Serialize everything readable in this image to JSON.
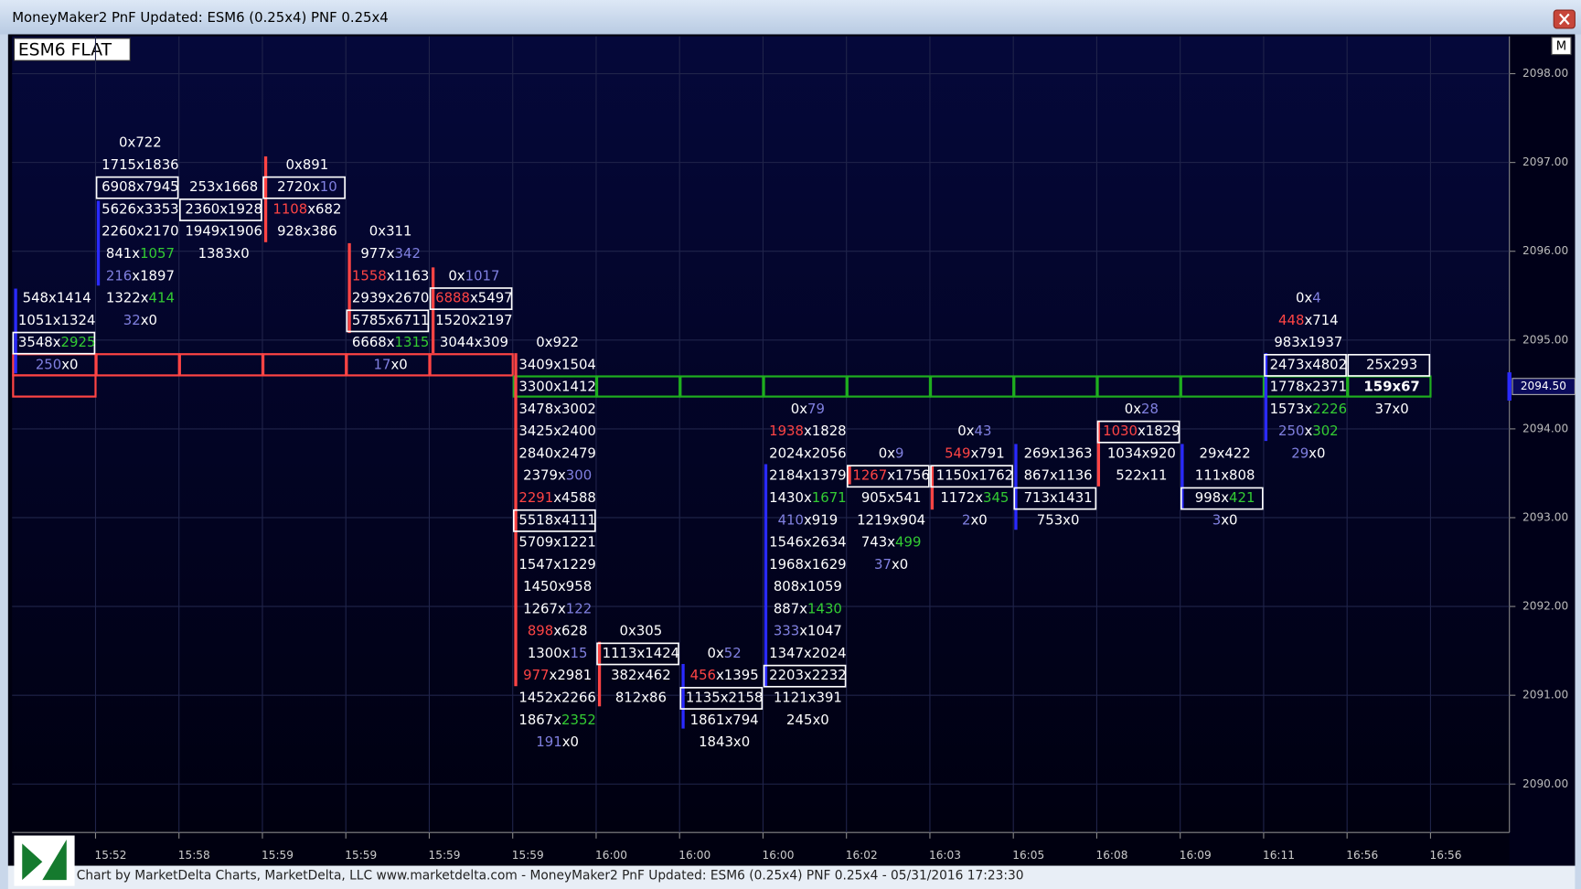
{
  "window": {
    "title": "MoneyMaker2 PnF Updated: ESM6 (0.25x4) PNF 0.25x4",
    "button": "M"
  },
  "symbol": "ESM6 FLAT",
  "footer": "Chart by MarketDelta Charts, MarketDelta, LLC www.marketdelta.com - MoneyMaker2 PnF Updated: ESM6 (0.25x4) PNF 0.25x4 - 05/31/2016 17:23:30",
  "price_axis": {
    "labels": [
      "2098.00",
      "2097.00",
      "2096.00",
      "2095.00",
      "2094.00",
      "2093.00",
      "2092.00",
      "2091.00",
      "2090.00"
    ],
    "current": "2094.50"
  },
  "time_axis": [
    "15:52",
    "15:58",
    "15:59",
    "15:59",
    "15:59",
    "15:59",
    "16:00",
    "16:00",
    "16:00",
    "16:02",
    "16:03",
    "16:05",
    "16:08",
    "16:09",
    "16:11",
    "16:56",
    "16:56"
  ],
  "colors": {
    "plain": "#ffffff",
    "green": "#33cc33",
    "blue": "#8080e0",
    "red": "#ff4444"
  },
  "columns": [
    {
      "top": 2095.5,
      "cells": [
        "548x1414",
        "1051x1324",
        {
          "text": "3548x2925",
          "ask": "green",
          "box": "plain"
        },
        {
          "text": "250x0",
          "bid": "blue"
        }
      ]
    },
    {
      "top": 2097.25,
      "cells": [
        "0x722",
        "1715x1836",
        {
          "text": "6908x7945",
          "box": "plain"
        },
        "5626x3353",
        "2260x2170",
        {
          "text": "841x1057",
          "ask": "green"
        },
        {
          "text": "216x1897",
          "bid": "blue"
        },
        {
          "text": "1322x414",
          "ask": "green"
        },
        {
          "text": "32x0",
          "bid": "blue"
        }
      ]
    },
    {
      "top": 2096.75,
      "cells": [
        "253x1668",
        {
          "text": "2360x1928",
          "box": "plain"
        },
        "1949x1906",
        "1383x0"
      ]
    },
    {
      "top": 2097.0,
      "cells": [
        "0x891",
        {
          "text": "2720x10",
          "ask": "blue",
          "box": "plain"
        },
        {
          "text": "1108x682",
          "bid": "red"
        },
        "928x386"
      ]
    },
    {
      "top": 2096.25,
      "cells": [
        "0x311",
        {
          "text": "977x342",
          "ask": "blue"
        },
        {
          "text": "1558x1163",
          "bid": "red"
        },
        "2939x2670",
        {
          "text": "5785x6711",
          "box": "plain"
        },
        {
          "text": "6668x1315",
          "ask": "green"
        },
        {
          "text": "17x0",
          "bid": "blue"
        }
      ]
    },
    {
      "top": 2095.75,
      "cells": [
        {
          "text": "0x1017",
          "ask": "blue"
        },
        {
          "text": "6888x5497",
          "bid": "red",
          "box": "plain"
        },
        "1520x2197",
        "3044x309"
      ]
    },
    {
      "top": 2095.0,
      "cells": [
        "0x922",
        "3409x1504",
        "3300x1412",
        "3478x3002",
        "3425x2400",
        "2840x2479",
        {
          "text": "2379x300",
          "ask": "blue"
        },
        {
          "text": "2291x4588",
          "bid": "red"
        },
        {
          "text": "5518x4111",
          "box": "plain"
        },
        "5709x1221",
        "1547x1229",
        "1450x958",
        {
          "text": "1267x122",
          "ask": "blue"
        },
        {
          "text": "898x628",
          "bid": "red"
        },
        {
          "text": "1300x15",
          "ask": "blue"
        },
        {
          "text": "977x2981",
          "bid": "red"
        },
        "1452x2266",
        {
          "text": "1867x2352",
          "ask": "green"
        },
        {
          "text": "191x0",
          "bid": "blue"
        }
      ]
    },
    {
      "top": 2091.75,
      "cells": [
        "0x305",
        {
          "text": "1113x1424",
          "box": "plain"
        },
        "382x462",
        "812x86"
      ]
    },
    {
      "top": 2091.5,
      "cells": [
        {
          "text": "0x52",
          "ask": "blue"
        },
        {
          "text": "456x1395",
          "bid": "red"
        },
        {
          "text": "1135x2158",
          "box": "plain"
        },
        "1861x794",
        "1843x0"
      ]
    },
    {
      "top": 2094.25,
      "cells": [
        {
          "text": "0x79",
          "ask": "blue"
        },
        {
          "text": "1938x1828",
          "bid": "red"
        },
        "2024x2056",
        "2184x1379",
        {
          "text": "1430x1671",
          "ask": "green"
        },
        {
          "text": "410x919",
          "bid": "blue"
        },
        "1546x2634",
        "1968x1629",
        "808x1059",
        {
          "text": "887x1430",
          "ask": "green"
        },
        {
          "text": "333x1047",
          "bid": "blue"
        },
        "1347x2024",
        {
          "text": "2203x2232",
          "box": "plain"
        },
        "1121x391",
        "245x0"
      ]
    },
    {
      "top": 2093.75,
      "cells": [
        {
          "text": "0x9",
          "ask": "blue"
        },
        {
          "text": "1267x1756",
          "bid": "red",
          "box": "plain"
        },
        "905x541",
        "1219x904",
        {
          "text": "743x499",
          "ask": "green"
        },
        {
          "text": "37x0",
          "bid": "blue"
        }
      ]
    },
    {
      "top": 2094.0,
      "cells": [
        {
          "text": "0x43",
          "ask": "blue"
        },
        {
          "text": "549x791",
          "bid": "red"
        },
        {
          "text": "1150x1762",
          "box": "plain"
        },
        {
          "text": "1172x345",
          "ask": "green"
        },
        {
          "text": "2x0",
          "bid": "blue"
        }
      ]
    },
    {
      "top": 2093.75,
      "cells": [
        "269x1363",
        "867x1136",
        {
          "text": "713x1431",
          "box": "plain"
        },
        "753x0"
      ]
    },
    {
      "top": 2094.25,
      "cells": [
        {
          "text": "0x28",
          "ask": "blue"
        },
        {
          "text": "1030x1829",
          "bid": "red",
          "box": "plain"
        },
        "1034x920",
        "522x11"
      ]
    },
    {
      "top": 2093.75,
      "cells": [
        "29x422",
        "111x808",
        {
          "text": "998x421",
          "ask": "green",
          "box": "plain"
        },
        {
          "text": "3x0",
          "bid": "blue"
        }
      ]
    },
    {
      "top": 2095.5,
      "cells": [
        {
          "text": "0x4",
          "ask": "blue"
        },
        {
          "text": "448x714",
          "bid": "red"
        },
        "983x1937",
        {
          "text": "2473x4802",
          "box": "plain"
        },
        "1778x2371",
        {
          "text": "1573x2226",
          "ask": "green"
        },
        {
          "text": "250x302",
          "bid": "blue",
          "ask": "green"
        },
        {
          "text": "29x0",
          "bid": "blue"
        }
      ]
    },
    {
      "top": 2094.75,
      "cells": [
        {
          "text": "25x293",
          "box": "plain"
        },
        {
          "text": "159x67",
          "bold": true
        },
        "37x0"
      ]
    }
  ]
}
